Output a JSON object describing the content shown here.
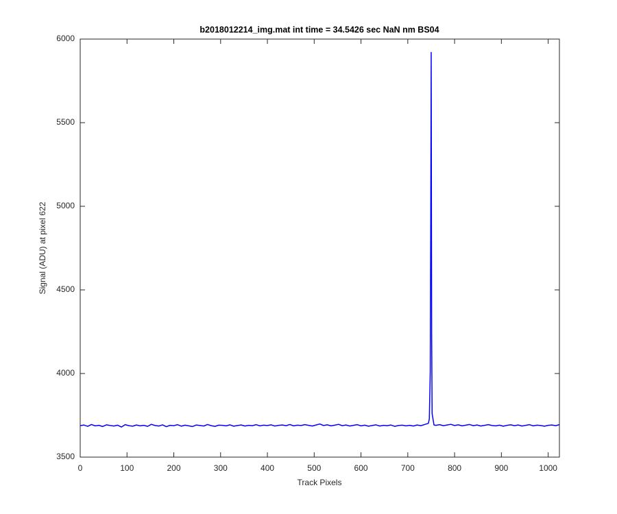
{
  "chart_data": {
    "type": "line",
    "title": "b2018012214_img.mat int time = 34.5426 sec  NaN nm BS04",
    "xlabel": "Track Pixels",
    "ylabel": "Signal (ADU) at pixel 622",
    "color": "#0000ff",
    "xlim": [
      0,
      1024
    ],
    "ylim": [
      3500,
      6000
    ],
    "xticks": [
      0,
      100,
      200,
      300,
      400,
      500,
      600,
      700,
      800,
      900,
      1000
    ],
    "yticks": [
      3500,
      4000,
      4500,
      5000,
      5500,
      6000
    ],
    "x": [
      0,
      8,
      16,
      24,
      32,
      40,
      48,
      56,
      64,
      72,
      80,
      88,
      96,
      104,
      112,
      120,
      128,
      136,
      144,
      152,
      160,
      168,
      176,
      184,
      192,
      200,
      208,
      216,
      224,
      232,
      240,
      248,
      256,
      264,
      272,
      280,
      288,
      296,
      304,
      312,
      320,
      328,
      336,
      344,
      352,
      360,
      368,
      376,
      384,
      392,
      400,
      408,
      416,
      424,
      432,
      440,
      448,
      456,
      464,
      472,
      480,
      488,
      496,
      504,
      512,
      520,
      528,
      536,
      544,
      552,
      560,
      568,
      576,
      584,
      592,
      600,
      608,
      616,
      624,
      632,
      640,
      648,
      656,
      664,
      672,
      680,
      688,
      696,
      704,
      712,
      720,
      728,
      736,
      744,
      746,
      748,
      749,
      750,
      751,
      752,
      756,
      760,
      768,
      776,
      784,
      792,
      800,
      808,
      816,
      824,
      832,
      840,
      848,
      856,
      864,
      872,
      880,
      888,
      896,
      904,
      912,
      920,
      928,
      936,
      944,
      952,
      960,
      968,
      976,
      984,
      992,
      1000,
      1008,
      1016,
      1024
    ],
    "values": [
      3688,
      3692,
      3684,
      3695,
      3687,
      3690,
      3683,
      3693,
      3689,
      3686,
      3691,
      3680,
      3694,
      3688,
      3685,
      3692,
      3687,
      3690,
      3684,
      3696,
      3689,
      3686,
      3693,
      3682,
      3690,
      3688,
      3694,
      3685,
      3691,
      3687,
      3683,
      3692,
      3689,
      3686,
      3695,
      3688,
      3684,
      3691,
      3690,
      3687,
      3693,
      3685,
      3689,
      3692,
      3686,
      3690,
      3688,
      3694,
      3687,
      3691,
      3689,
      3693,
      3686,
      3690,
      3692,
      3688,
      3695,
      3687,
      3691,
      3689,
      3694,
      3690,
      3686,
      3692,
      3698,
      3689,
      3693,
      3687,
      3691,
      3696,
      3688,
      3692,
      3686,
      3690,
      3694,
      3687,
      3691,
      3685,
      3689,
      3693,
      3686,
      3690,
      3688,
      3692,
      3684,
      3689,
      3691,
      3687,
      3690,
      3686,
      3692,
      3688,
      3695,
      3702,
      3728,
      4010,
      4850,
      5920,
      4230,
      3760,
      3692,
      3690,
      3694,
      3688,
      3692,
      3696,
      3689,
      3693,
      3687,
      3691,
      3695,
      3688,
      3692,
      3686,
      3690,
      3694,
      3689,
      3687,
      3691,
      3685,
      3690,
      3693,
      3688,
      3692,
      3686,
      3690,
      3694,
      3687,
      3691,
      3689,
      3685,
      3690,
      3692,
      3688,
      3694
    ]
  }
}
